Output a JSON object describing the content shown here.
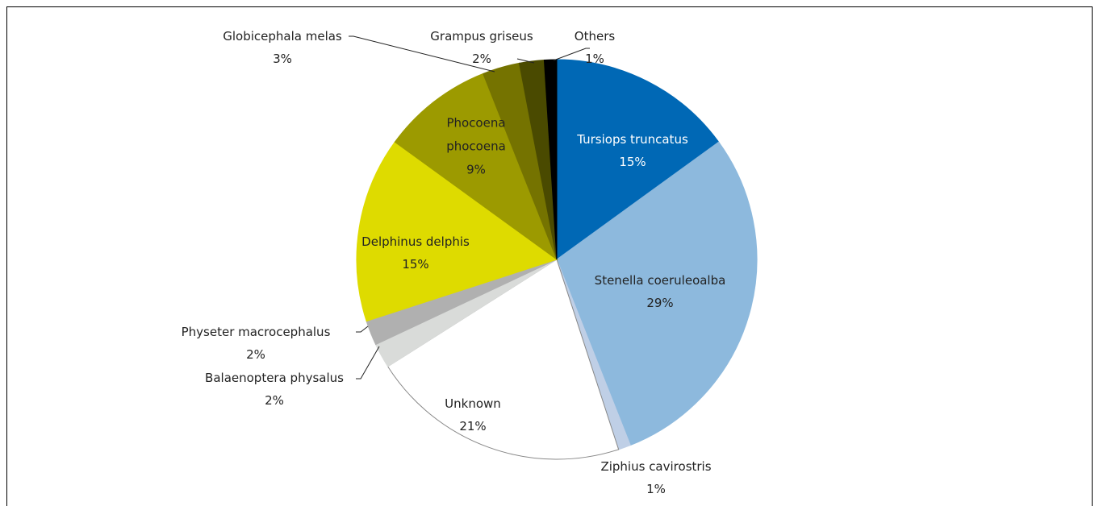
{
  "chart_data": {
    "type": "pie",
    "categories": [
      "Tursiops truncatus",
      "Stenella coeruleoalba",
      "Ziphius cavirostris",
      "Unknown",
      "Balaenoptera physalus",
      "Physeter macrocephalus",
      "Delphinus delphis",
      "Phocoena phocoena",
      "Globicephala melas",
      "Grampus griseus",
      "Others"
    ],
    "values": [
      15,
      29,
      1,
      21,
      2,
      2,
      15,
      9,
      3,
      2,
      1
    ],
    "value_labels": [
      "15%",
      "29%",
      "1%",
      "21%",
      "2%",
      "2%",
      "15%",
      "9%",
      "3%",
      "2%",
      "1%"
    ],
    "colors": [
      "#0068b5",
      "#8db9dd",
      "#bfcfe6",
      "#ffffff",
      "#d9dbd9",
      "#b0b0b0",
      "#dedb00",
      "#9c9a00",
      "#757300",
      "#4a4a00",
      "#000000"
    ]
  }
}
